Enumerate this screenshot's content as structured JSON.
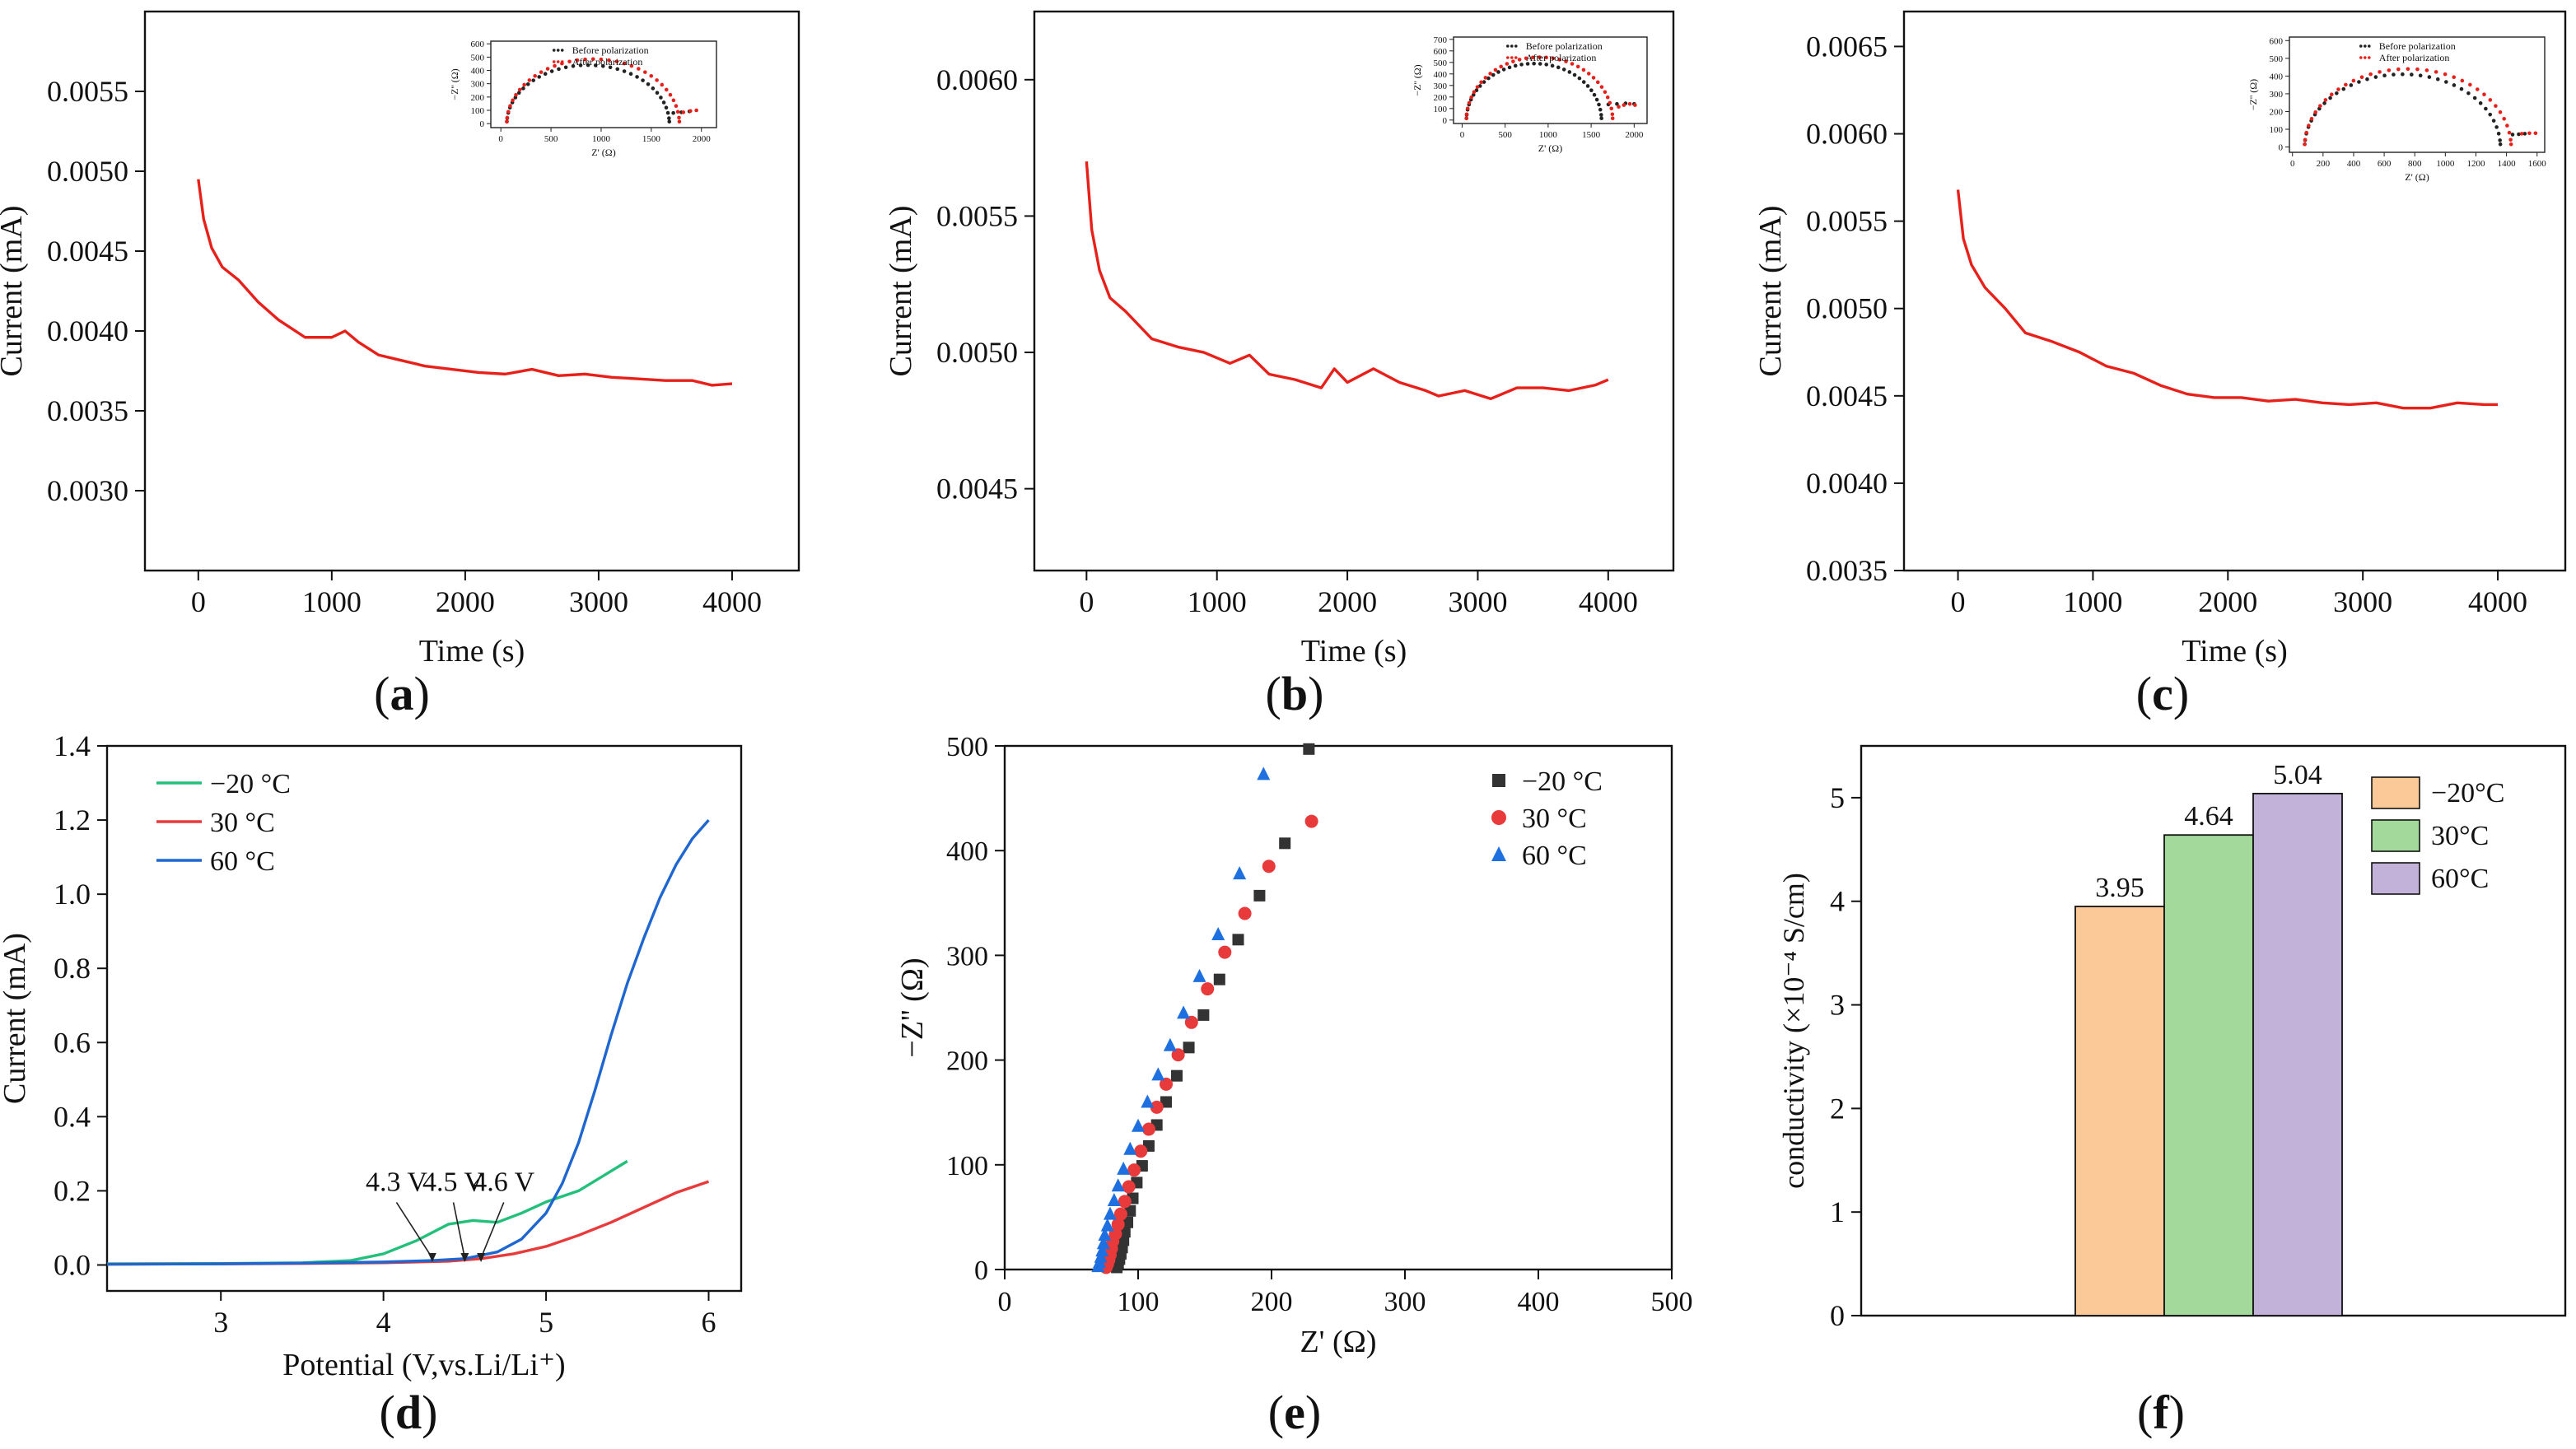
{
  "chart_data": [
    {
      "id": "a",
      "type": "line",
      "panel_label": "a",
      "title": "",
      "xlabel": "Time (s)",
      "ylabel": "Current (mA)",
      "xlim": [
        -400,
        4500
      ],
      "ylim": [
        0.0025,
        0.006
      ],
      "xticks": [
        0,
        1000,
        2000,
        3000,
        4000
      ],
      "yticks": [
        0.003,
        0.0035,
        0.004,
        0.0045,
        0.005,
        0.0055
      ],
      "ytick_labels": [
        "0.0030",
        "0.0035",
        "0.0040",
        "0.0045",
        "0.0050",
        "0.0055"
      ],
      "series": [
        {
          "name": "current",
          "color": "#e8201a",
          "x": [
            0,
            40,
            100,
            180,
            300,
            450,
            600,
            800,
            1000,
            1100,
            1200,
            1350,
            1500,
            1700,
            1900,
            2100,
            2300,
            2500,
            2700,
            2900,
            3100,
            3300,
            3500,
            3700,
            3850,
            4000
          ],
          "y": [
            0.00495,
            0.0047,
            0.00452,
            0.0044,
            0.00432,
            0.00418,
            0.00407,
            0.00396,
            0.00396,
            0.004,
            0.00393,
            0.00385,
            0.00382,
            0.00378,
            0.00376,
            0.00374,
            0.00373,
            0.00376,
            0.00372,
            0.00373,
            0.00371,
            0.0037,
            0.00369,
            0.00369,
            0.00366,
            0.00367
          ]
        }
      ],
      "inset": {
        "xlabel": "Z' (Ω)",
        "ylabel": "−Z'' (Ω)",
        "xlim": [
          -100,
          2150
        ],
        "ylim": [
          -30,
          620
        ],
        "xticks": [
          0,
          500,
          1000,
          1500,
          2000
        ],
        "yticks": [
          0,
          100,
          200,
          300,
          400,
          500,
          600
        ],
        "legend": [
          "Before polarization",
          "After polarization"
        ],
        "series": [
          {
            "name": "Before polarization",
            "color": "#222222",
            "R0": 60,
            "R": 1680,
            "peak": 440,
            "tail_x": [
              1720,
              1800,
              1880
            ],
            "tail_y": [
              80,
              85,
              92
            ]
          },
          {
            "name": "After polarization",
            "color": "#e8201a",
            "R0": 60,
            "R": 1780,
            "peak": 485,
            "tail_x": [
              1820,
              1890,
              1950
            ],
            "tail_y": [
              85,
              95,
              100
            ]
          }
        ]
      }
    },
    {
      "id": "b",
      "type": "line",
      "panel_label": "b",
      "title": "",
      "xlabel": "Time (s)",
      "ylabel": "Current (mA)",
      "xlim": [
        -400,
        4500
      ],
      "ylim": [
        0.0042,
        0.00625
      ],
      "xticks": [
        0,
        1000,
        2000,
        3000,
        4000
      ],
      "yticks": [
        0.0045,
        0.005,
        0.0055,
        0.006
      ],
      "ytick_labels": [
        "0.0045",
        "0.0050",
        "0.0055",
        "0.0060"
      ],
      "series": [
        {
          "name": "current",
          "color": "#e8201a",
          "x": [
            0,
            40,
            100,
            180,
            300,
            500,
            700,
            900,
            1100,
            1250,
            1400,
            1600,
            1800,
            1900,
            2000,
            2200,
            2400,
            2600,
            2700,
            2900,
            3100,
            3300,
            3500,
            3700,
            3900,
            4000
          ],
          "y": [
            0.0057,
            0.00545,
            0.0053,
            0.0052,
            0.00515,
            0.00505,
            0.00502,
            0.005,
            0.00496,
            0.00499,
            0.00492,
            0.0049,
            0.00487,
            0.00494,
            0.00489,
            0.00494,
            0.00489,
            0.00486,
            0.00484,
            0.00486,
            0.00483,
            0.00487,
            0.00487,
            0.00486,
            0.00488,
            0.0049
          ]
        }
      ],
      "inset": {
        "xlabel": "Z' (Ω)",
        "ylabel": "−Z'' (Ω)",
        "xlim": [
          -100,
          2150
        ],
        "ylim": [
          -30,
          720
        ],
        "xticks": [
          0,
          500,
          1000,
          1500,
          2000
        ],
        "yticks": [
          0,
          100,
          200,
          300,
          400,
          500,
          600,
          700
        ],
        "legend": [
          "Before polarization",
          "After polarization"
        ],
        "series": [
          {
            "name": "Before polarization",
            "color": "#222222",
            "R0": 50,
            "R": 1620,
            "peak": 490,
            "tail_x": [
              1700,
              1800,
              1900,
              2000
            ],
            "tail_y": [
              135,
              140,
              145,
              140
            ]
          },
          {
            "name": "After polarization",
            "color": "#e8201a",
            "R0": 50,
            "R": 1750,
            "peak": 545,
            "tail_x": [
              1820,
              1880,
              1950,
              2010
            ],
            "tail_y": [
              115,
              130,
              140,
              130
            ]
          }
        ]
      }
    },
    {
      "id": "c",
      "type": "line",
      "panel_label": "c",
      "title": "",
      "xlabel": "Time (s)",
      "ylabel": "Current (mA)",
      "xlim": [
        -400,
        4500
      ],
      "ylim": [
        0.0035,
        0.0067
      ],
      "xticks": [
        0,
        1000,
        2000,
        3000,
        4000
      ],
      "yticks": [
        0.0035,
        0.004,
        0.0045,
        0.005,
        0.0055,
        0.006,
        0.0065
      ],
      "ytick_labels": [
        "0.0035",
        "0.0040",
        "0.0045",
        "0.0050",
        "0.0055",
        "0.0060",
        "0.0065"
      ],
      "series": [
        {
          "name": "current",
          "color": "#e8201a",
          "x": [
            0,
            40,
            100,
            200,
            350,
            500,
            700,
            900,
            1100,
            1300,
            1500,
            1700,
            1900,
            2100,
            2300,
            2500,
            2700,
            2900,
            3100,
            3300,
            3500,
            3700,
            3900,
            4000
          ],
          "y": [
            0.00568,
            0.0054,
            0.00525,
            0.00512,
            0.005,
            0.00486,
            0.00481,
            0.00475,
            0.00467,
            0.00463,
            0.00456,
            0.00451,
            0.00449,
            0.00449,
            0.00447,
            0.00448,
            0.00446,
            0.00445,
            0.00446,
            0.00443,
            0.00443,
            0.00446,
            0.00445,
            0.00445
          ]
        }
      ],
      "inset": {
        "xlabel": "Z' (Ω)",
        "ylabel": "−Z'' (Ω)",
        "xlim": [
          -20,
          1650
        ],
        "ylim": [
          -30,
          620
        ],
        "xticks": [
          0,
          200,
          400,
          600,
          800,
          1000,
          1200,
          1400,
          1600
        ],
        "yticks": [
          0,
          100,
          200,
          300,
          400,
          500,
          600
        ],
        "legend": [
          "Before polarization",
          "After polarization"
        ],
        "series": [
          {
            "name": "Before polarization",
            "color": "#222222",
            "R0": 80,
            "R": 1360,
            "peak": 410,
            "tail_x": [
              1440,
              1480,
              1520
            ],
            "tail_y": [
              70,
              72,
              75
            ]
          },
          {
            "name": "After polarization",
            "color": "#e8201a",
            "R0": 80,
            "R": 1430,
            "peak": 440,
            "tail_x": [
              1500,
              1550,
              1590
            ],
            "tail_y": [
              75,
              78,
              78
            ]
          }
        ]
      }
    },
    {
      "id": "d",
      "type": "line",
      "panel_label": "d",
      "title": "",
      "xlabel": "Potential (V,vs.Li/Li⁺)",
      "ylabel": "Current (mA)",
      "xlim": [
        2.3,
        6.2
      ],
      "ylim": [
        -0.07,
        1.4
      ],
      "xticks": [
        3,
        4,
        5,
        6
      ],
      "yticks": [
        0.0,
        0.2,
        0.4,
        0.6,
        0.8,
        1.0,
        1.2,
        1.4
      ],
      "ytick_labels": [
        "0.0",
        "0.2",
        "0.4",
        "0.6",
        "0.8",
        "1.0",
        "1.2",
        "1.4"
      ],
      "annotations": [
        {
          "text": "4.3 V",
          "x": 4.3,
          "y": 0.01
        },
        {
          "text": "4.5 V",
          "x": 4.5,
          "y": 0.01
        },
        {
          "text": "4.6 V",
          "x": 4.6,
          "y": 0.01
        }
      ],
      "series": [
        {
          "name": "−20 °C",
          "color": "#22c07a",
          "x": [
            2.3,
            3.0,
            3.5,
            3.8,
            4.0,
            4.2,
            4.4,
            4.55,
            4.7,
            4.85,
            5.0,
            5.2,
            5.35,
            5.5
          ],
          "y": [
            0.003,
            0.004,
            0.006,
            0.012,
            0.03,
            0.065,
            0.11,
            0.12,
            0.115,
            0.14,
            0.17,
            0.2,
            0.24,
            0.28
          ]
        },
        {
          "name": "30 °C",
          "color": "#e83a3a",
          "x": [
            2.3,
            3.0,
            3.5,
            4.0,
            4.4,
            4.6,
            4.8,
            5.0,
            5.2,
            5.4,
            5.6,
            5.8,
            6.0
          ],
          "y": [
            0.002,
            0.003,
            0.004,
            0.006,
            0.01,
            0.017,
            0.03,
            0.05,
            0.08,
            0.115,
            0.155,
            0.195,
            0.225
          ]
        },
        {
          "name": "60 °C",
          "color": "#1e66d0",
          "x": [
            2.3,
            3.0,
            3.5,
            4.0,
            4.3,
            4.5,
            4.7,
            4.85,
            5.0,
            5.1,
            5.2,
            5.3,
            5.4,
            5.5,
            5.6,
            5.7,
            5.8,
            5.9,
            6.0
          ],
          "y": [
            0.002,
            0.003,
            0.005,
            0.008,
            0.012,
            0.017,
            0.035,
            0.07,
            0.14,
            0.22,
            0.33,
            0.47,
            0.62,
            0.76,
            0.88,
            0.99,
            1.08,
            1.15,
            1.2
          ]
        }
      ],
      "legend": [
        "−20 °C",
        "30 °C",
        "60 °C"
      ]
    },
    {
      "id": "e",
      "type": "scatter",
      "panel_label": "e",
      "title": "",
      "xlabel": "Z' (Ω)",
      "ylabel": "−Z'' (Ω)",
      "xlim": [
        0,
        500
      ],
      "ylim": [
        0,
        500
      ],
      "xticks": [
        0,
        100,
        200,
        300,
        400,
        500
      ],
      "yticks": [
        0,
        100,
        200,
        300,
        400,
        500
      ],
      "ytick_labels": [
        "0",
        "100",
        "200",
        "300",
        "400",
        "500"
      ],
      "series": [
        {
          "name": "−20 °C",
          "color": "#333333",
          "marker": "square",
          "x": [
            84,
            85,
            86,
            87,
            88,
            89,
            90,
            92,
            94,
            96,
            99,
            103,
            108,
            114,
            121,
            129,
            138,
            149,
            161,
            175,
            191,
            210,
            228
          ],
          "y": [
            2,
            6,
            10,
            15,
            21,
            28,
            36,
            45,
            56,
            68,
            83,
            99,
            118,
            138,
            160,
            185,
            212,
            243,
            277,
            315,
            357,
            407,
            497
          ]
        },
        {
          "name": "30 °C",
          "color": "#e83a3a",
          "marker": "circle",
          "x": [
            76,
            77,
            78,
            79,
            80,
            81,
            83,
            85,
            87,
            90,
            93,
            97,
            102,
            108,
            114,
            121,
            130,
            140,
            152,
            165,
            180,
            198,
            230
          ],
          "y": [
            2,
            5,
            9,
            14,
            20,
            27,
            34,
            43,
            53,
            65,
            79,
            95,
            113,
            134,
            155,
            177,
            205,
            236,
            268,
            303,
            340,
            385,
            428
          ]
        },
        {
          "name": "60 °C",
          "color": "#1e70e0",
          "marker": "triangle",
          "x": [
            70,
            71,
            72,
            73,
            74,
            75,
            77,
            79,
            82,
            85,
            89,
            94,
            100,
            107,
            115,
            124,
            134,
            146,
            160,
            176,
            194
          ],
          "y": [
            3,
            7,
            12,
            18,
            25,
            33,
            42,
            53,
            66,
            80,
            96,
            115,
            137,
            160,
            186,
            214,
            245,
            280,
            320,
            378,
            473
          ]
        }
      ],
      "legend": [
        "−20 °C",
        "30 °C",
        "60 °C"
      ]
    },
    {
      "id": "f",
      "type": "bar",
      "panel_label": "f",
      "title": "",
      "xlabel": "",
      "ylabel": "conductivity (×10⁻⁴ S/cm)",
      "ylim": [
        0,
        5.5
      ],
      "yticks": [
        0,
        1,
        2,
        3,
        4,
        5
      ],
      "ytick_labels": [
        "0",
        "1",
        "2",
        "3",
        "4",
        "5"
      ],
      "categories": [
        "−20°C",
        "30°C",
        "60°C"
      ],
      "values": [
        3.95,
        4.64,
        5.04
      ],
      "value_labels": [
        "3.95",
        "4.64",
        "5.04"
      ],
      "colors": [
        "#fbc897",
        "#a3d99a",
        "#c2b2da"
      ],
      "legend": [
        "−20°C",
        "30°C",
        "60°C"
      ]
    }
  ]
}
